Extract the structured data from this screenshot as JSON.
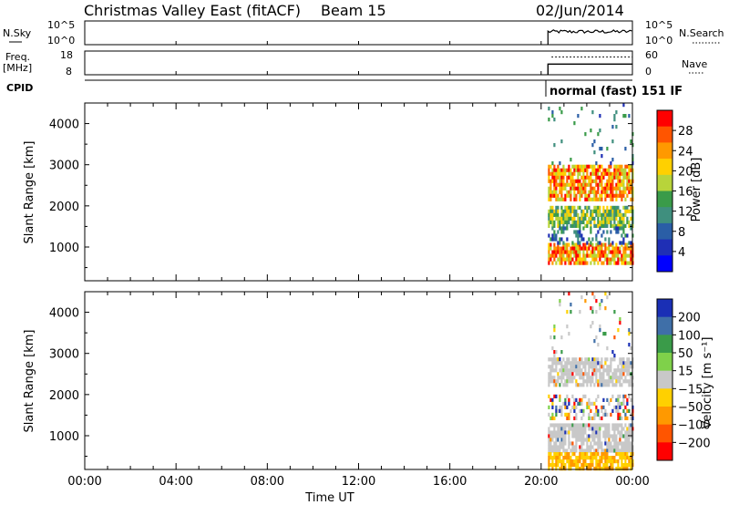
{
  "title": "Christmas Valley East (fitACF)",
  "beam_label": "Beam 15",
  "date": "02/Jun/2014",
  "cpid_label": "CPID",
  "mode_label": "normal (fast)  151 IF",
  "xlabel": "Time UT",
  "x_ticks": [
    "00:00",
    "04:00",
    "08:00",
    "12:00",
    "16:00",
    "20:00",
    "00:00"
  ],
  "colors": {
    "axis": "#000000",
    "gap": "#cccccc"
  },
  "chart_data": [
    {
      "type": "line",
      "name_left": "N.Sky",
      "name_right": "N.Search",
      "left_ticks": [
        "10^5",
        "10^0"
      ],
      "right_ticks": [
        "10^5",
        "10^0"
      ],
      "data_start_hour": 20.3,
      "data_end_hour": 24,
      "level": 0.55,
      "noise": 0.15
    },
    {
      "type": "line",
      "name_left": "Freq.",
      "unit_left": "[MHz]",
      "name_right": "Nave",
      "left_ticks": [
        "18",
        "8"
      ],
      "right_ticks": [
        "60",
        "0"
      ],
      "data_start_hour": 20.3,
      "data_end_hour": 24,
      "freq_level": 0.45,
      "nave_level": 0.75
    },
    {
      "type": "heatmap",
      "ylabel": "Slant Range [km]",
      "yticks": [
        1000,
        2000,
        3000,
        4000
      ],
      "ylim": [
        180,
        4500
      ],
      "xlim_hours": [
        0,
        24
      ],
      "data_start_hour": 20.3,
      "colorbar_label": "Power [dB]",
      "colorbar_ticks": [
        "28",
        "24",
        "20",
        "16",
        "12",
        "8",
        "4"
      ],
      "colorbar_colors": [
        "#ff0000",
        "#ff5500",
        "#ff9900",
        "#ffd000",
        "#b8d43a",
        "#3a9b49",
        "#3f8f7e",
        "#2a5ea6",
        "#1f2fb5",
        "#0000ff"
      ],
      "bands": [
        {
          "range_km": [
            2200,
            3000
          ],
          "level": "high"
        },
        {
          "range_km": [
            600,
            1100
          ],
          "level": "high"
        },
        {
          "range_km": [
            1500,
            2000
          ],
          "level": "mid"
        },
        {
          "range_km": [
            1100,
            1500
          ],
          "level": "low"
        },
        {
          "range_km": [
            3000,
            4500
          ],
          "level": "sparse"
        }
      ]
    },
    {
      "type": "heatmap",
      "ylabel": "Slant Range [km]",
      "yticks": [
        1000,
        2000,
        3000,
        4000
      ],
      "ylim": [
        180,
        4500
      ],
      "xlim_hours": [
        0,
        24
      ],
      "data_start_hour": 20.3,
      "colorbar_label": "Velocity [m s⁻¹]",
      "colorbar_ticks": [
        "200",
        "100",
        "50",
        "15",
        "−15",
        "−50",
        "−100",
        "−200"
      ],
      "colorbar_colors": [
        "#1a2fb5",
        "#3f6fa8",
        "#3a9b49",
        "#7fd14a",
        "#c8c8c8",
        "#ffd000",
        "#ff9900",
        "#ff5500",
        "#ff0000"
      ],
      "bands": [
        {
          "range_km": [
            2200,
            2900
          ],
          "level": "gray"
        },
        {
          "range_km": [
            600,
            1300
          ],
          "level": "gray"
        },
        {
          "range_km": [
            200,
            600
          ],
          "level": "orange"
        },
        {
          "range_km": [
            1400,
            2000
          ],
          "level": "mixed"
        },
        {
          "range_km": [
            2900,
            4500
          ],
          "level": "sparse"
        }
      ]
    }
  ]
}
